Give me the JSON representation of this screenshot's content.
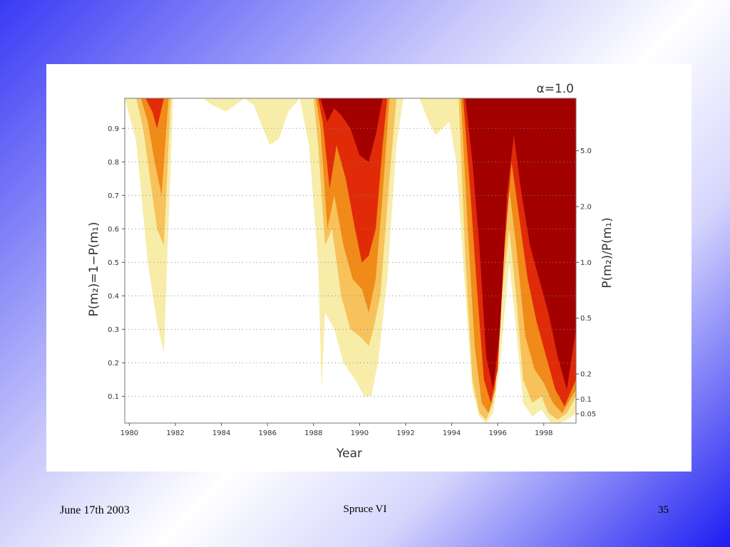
{
  "slide": {
    "footer_date": "June 17th 2003",
    "footer_title": "Spruce  VI",
    "page_number": "35"
  },
  "chart_data": {
    "type": "area",
    "annotation": "α=1.0",
    "xlabel": "Year",
    "ylabel_left": "P(m₂)=1−P(m₁)",
    "ylabel_right": "P(m₂)/P(m₁)",
    "xlim": [
      1979.8,
      1999.4
    ],
    "ylim": [
      0.02,
      0.99
    ],
    "x_ticks": [
      1980,
      1982,
      1984,
      1986,
      1988,
      1990,
      1992,
      1994,
      1996,
      1998
    ],
    "y_ticks_left": [
      0.1,
      0.2,
      0.3,
      0.4,
      0.5,
      0.6,
      0.7,
      0.8,
      0.9
    ],
    "y_ticks_right": [
      {
        "label": "5.0",
        "ratio": 5.0
      },
      {
        "label": "2.0",
        "ratio": 2.0
      },
      {
        "label": "1.0",
        "ratio": 1.0
      },
      {
        "label": "0.5",
        "ratio": 0.5
      },
      {
        "label": "0.2",
        "ratio": 0.2
      },
      {
        "label": "0.1",
        "ratio": 0.1
      },
      {
        "label": "0.05",
        "ratio": 0.05
      }
    ],
    "grid": {
      "horizontal_dotted": true
    },
    "levels": [
      {
        "color": "#f7eda8",
        "x": [
          1979.8,
          1980.3,
          1980.8,
          1981.2,
          1981.5,
          1981.9,
          1983.2,
          1983.6,
          1984.2,
          1984.6,
          1985.0,
          1985.4,
          1985.8,
          1986.1,
          1986.5,
          1986.9,
          1987.4,
          1987.8,
          1988.2,
          1988.35,
          1988.5,
          1988.9,
          1989.3,
          1989.8,
          1990.2,
          1990.5,
          1990.8,
          1991.2,
          1991.6,
          1991.9,
          1992.6,
          1993.0,
          1993.3,
          1993.6,
          1993.9,
          1994.2,
          1994.6,
          1994.9,
          1995.2,
          1995.5,
          1995.8,
          1996.1,
          1996.5,
          1996.8,
          1997.1,
          1997.5,
          1997.9,
          1998.3,
          1998.7,
          1999.0,
          1999.4
        ],
        "y": [
          0.99,
          0.86,
          0.5,
          0.32,
          0.23,
          0.99,
          0.99,
          0.97,
          0.95,
          0.97,
          0.99,
          0.97,
          0.9,
          0.85,
          0.87,
          0.95,
          0.99,
          0.85,
          0.5,
          0.12,
          0.35,
          0.3,
          0.2,
          0.15,
          0.1,
          0.1,
          0.2,
          0.45,
          0.85,
          0.99,
          0.99,
          0.92,
          0.88,
          0.9,
          0.92,
          0.8,
          0.4,
          0.12,
          0.04,
          0.02,
          0.05,
          0.2,
          0.5,
          0.3,
          0.08,
          0.04,
          0.06,
          0.02,
          0.02,
          0.03,
          0.05
        ]
      },
      {
        "color": "#f7c25c",
        "x": [
          1980.3,
          1980.6,
          1980.9,
          1981.2,
          1981.5,
          1981.8,
          1988.0,
          1988.2,
          1988.5,
          1988.8,
          1989.2,
          1989.6,
          1990.0,
          1990.4,
          1990.6,
          1990.9,
          1991.3,
          1991.6,
          1994.3,
          1994.6,
          1994.9,
          1995.2,
          1995.5,
          1995.8,
          1996.1,
          1996.5,
          1996.8,
          1997.1,
          1997.5,
          1997.9,
          1998.2,
          1998.6,
          1999.0,
          1999.4
        ],
        "y": [
          0.99,
          0.9,
          0.75,
          0.6,
          0.55,
          0.99,
          0.99,
          0.85,
          0.55,
          0.6,
          0.4,
          0.3,
          0.28,
          0.25,
          0.3,
          0.4,
          0.75,
          0.99,
          0.99,
          0.5,
          0.15,
          0.05,
          0.03,
          0.08,
          0.35,
          0.6,
          0.4,
          0.15,
          0.08,
          0.1,
          0.05,
          0.03,
          0.05,
          0.1
        ]
      },
      {
        "color": "#f08a18",
        "x": [
          1980.5,
          1980.8,
          1981.1,
          1981.4,
          1981.7,
          1988.1,
          1988.3,
          1988.6,
          1988.9,
          1989.3,
          1989.7,
          1990.1,
          1990.4,
          1990.7,
          1991.0,
          1991.3,
          1994.4,
          1994.7,
          1995.0,
          1995.3,
          1995.6,
          1995.9,
          1996.2,
          1996.5,
          1996.8,
          1997.2,
          1997.6,
          1998.0,
          1998.4,
          1998.8,
          1999.4
        ],
        "y": [
          0.99,
          0.92,
          0.8,
          0.7,
          0.99,
          0.99,
          0.9,
          0.6,
          0.7,
          0.55,
          0.45,
          0.42,
          0.35,
          0.45,
          0.7,
          0.99,
          0.99,
          0.6,
          0.25,
          0.08,
          0.05,
          0.12,
          0.45,
          0.72,
          0.55,
          0.28,
          0.18,
          0.14,
          0.08,
          0.05,
          0.12
        ]
      },
      {
        "color": "#e02a08",
        "x": [
          1980.7,
          1981.0,
          1981.2,
          1981.5,
          1988.2,
          1988.4,
          1988.7,
          1989.0,
          1989.4,
          1989.8,
          1990.1,
          1990.4,
          1990.7,
          1991.0,
          1991.2,
          1994.5,
          1994.8,
          1995.1,
          1995.4,
          1995.7,
          1996.0,
          1996.3,
          1996.6,
          1996.9,
          1997.3,
          1997.7,
          1998.1,
          1998.5,
          1998.9,
          1999.4
        ],
        "y": [
          0.99,
          0.95,
          0.9,
          0.99,
          0.99,
          0.92,
          0.72,
          0.85,
          0.75,
          0.6,
          0.5,
          0.52,
          0.6,
          0.85,
          0.99,
          0.99,
          0.72,
          0.42,
          0.15,
          0.08,
          0.18,
          0.55,
          0.8,
          0.65,
          0.45,
          0.32,
          0.22,
          0.12,
          0.07,
          0.15
        ]
      },
      {
        "color": "#a30000",
        "x": [
          1988.3,
          1988.6,
          1988.9,
          1989.2,
          1989.6,
          1990.0,
          1990.4,
          1990.7,
          1991.0,
          1994.6,
          1994.9,
          1995.2,
          1995.5,
          1995.8,
          1996.1,
          1996.4,
          1996.7,
          1997.0,
          1997.4,
          1997.8,
          1998.2,
          1998.6,
          1999.0,
          1999.4
        ],
        "y": [
          0.99,
          0.92,
          0.96,
          0.94,
          0.9,
          0.82,
          0.8,
          0.88,
          0.99,
          0.99,
          0.8,
          0.55,
          0.22,
          0.12,
          0.3,
          0.7,
          0.88,
          0.72,
          0.55,
          0.45,
          0.35,
          0.22,
          0.12,
          0.3
        ]
      }
    ]
  }
}
